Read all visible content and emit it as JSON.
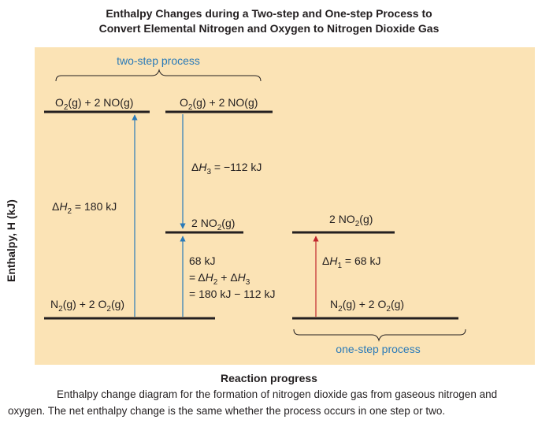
{
  "title_line1": "Enthalpy Changes during a Two-step and One-step Process to",
  "title_line2": "Convert Elemental Nitrogen and Oxygen to Nitrogen Dioxide Gas",
  "y_axis_label": "Enthalpy, H (kJ)",
  "x_axis_label": "Reaction progress",
  "caption": "Enthalpy change diagram for the formation of nitrogen dioxide gas from gaseous nitrogen and oxygen. The net enthalpy change is the same whether the process occurs in one step or two.",
  "brace_labels": {
    "two_step": "two-step process",
    "one_step": "one-step process"
  },
  "levels": {
    "top_left": "O2(g) + 2 NO(g)",
    "top_middle": "O2(g) + 2 NO(g)",
    "mid_middle": "2 NO2(g)",
    "mid_right": "2 NO2(g)",
    "bottom_left": "N2(g) + 2 O2(g)",
    "bottom_right": "N2(g) + 2 O2(g)"
  },
  "changes": {
    "dH2": "ΔH2 = 180 kJ",
    "dH3": "ΔH3 = −112 kJ",
    "dH1": "ΔH1 = 68 kJ",
    "sum_line1": "68 kJ",
    "sum_line2": "= ΔH2 + ΔH3",
    "sum_line3": "= 180 kJ − 112 kJ"
  },
  "colors": {
    "panel": "#fbe3b5",
    "arrow": "#2a7ab8",
    "arrow_red": "#c0272d",
    "brace_text": "#2a7ab8",
    "line": "#231f20"
  }
}
